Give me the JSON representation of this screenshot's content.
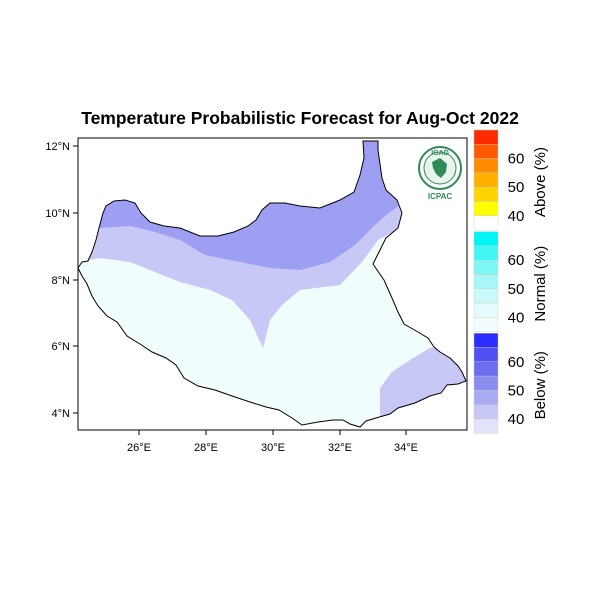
{
  "title": "Temperature Probabilistic Forecast for Aug-Oct 2022",
  "map": {
    "lon_range": [
      24,
      36
    ],
    "lat_range": [
      3.5,
      12.3
    ],
    "x_ticks": [
      "26°E",
      "28°E",
      "30°E",
      "32°E",
      "34°E"
    ],
    "y_ticks": [
      "12°N",
      "10°N",
      "8°N",
      "6°N",
      "4°N"
    ],
    "regions": [
      {
        "category": "Below",
        "probability": "50-55"
      },
      {
        "category": "Below",
        "probability": "40-50"
      },
      {
        "category": "Normal",
        "probability": "35-40"
      }
    ]
  },
  "legend": {
    "groups": [
      {
        "title": "Above (%)",
        "labels": [
          "60",
          "50",
          "40"
        ],
        "colors": [
          "#ff2a00",
          "#ff5a00",
          "#ff8c00",
          "#ffb000",
          "#ffd400",
          "#ffff00",
          "#ffffff"
        ]
      },
      {
        "title": "Normal (%)",
        "labels": [
          "60",
          "50",
          "40"
        ],
        "colors": [
          "#00f5f5",
          "#44f5f5",
          "#7ff6f6",
          "#a8f7f7",
          "#c9f9f9",
          "#e4fbfb",
          "#f3fdfd"
        ]
      },
      {
        "title": "Below (%)",
        "labels": [
          "60",
          "50",
          "40"
        ],
        "colors": [
          "#2c2cff",
          "#5050f5",
          "#6c6cf0",
          "#8c8cf0",
          "#aaaaf2",
          "#c8c8f6",
          "#e2e2fa"
        ]
      }
    ]
  },
  "logo": {
    "top_text": "IGAD",
    "bottom_text": "ICPAC"
  },
  "colors": {
    "below_dark": "#9e9ef2",
    "below_light": "#c8c8f6",
    "normal": "#f1fcfc"
  }
}
